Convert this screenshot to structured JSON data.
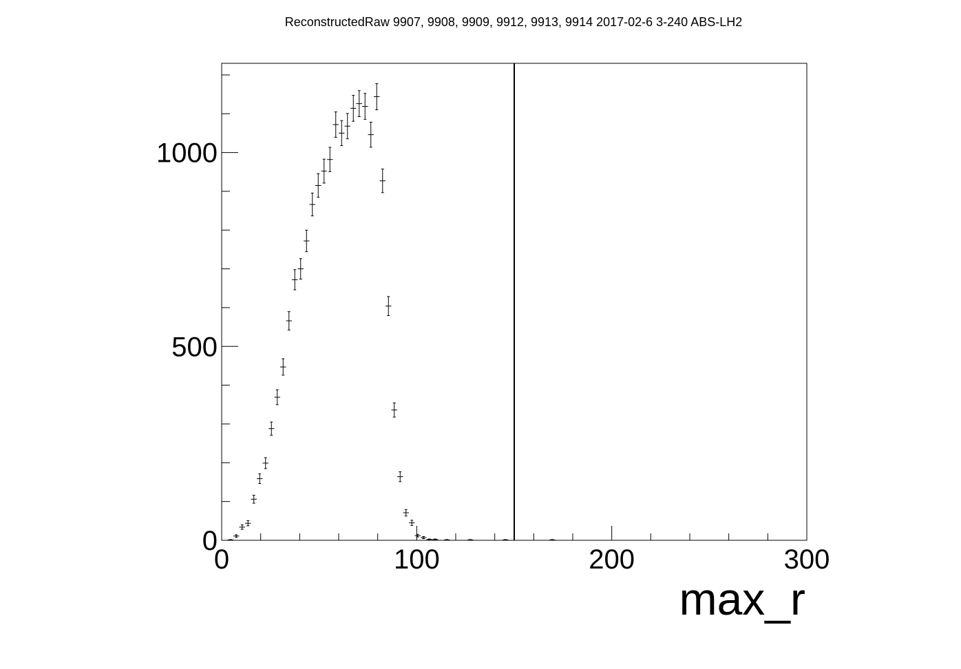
{
  "chart_data": {
    "type": "scatter",
    "title": "ReconstructedRaw 9907, 9908, 9909, 9912, 9913, 9914 2017-02-6 3-240 ABS-LH2",
    "xlabel": "max_r",
    "ylabel": "",
    "xlim": [
      0,
      300
    ],
    "ylim": [
      0,
      1230
    ],
    "x_ticks": [
      0,
      100,
      200,
      300
    ],
    "y_ticks": [
      0,
      500,
      1000
    ],
    "grid": false,
    "legend": "none",
    "cut_line_x": 150,
    "x_bin_width": 3,
    "points": [
      {
        "x": 4.5,
        "y": 1
      },
      {
        "x": 7.5,
        "y": 11
      },
      {
        "x": 10.5,
        "y": 34
      },
      {
        "x": 13.5,
        "y": 44
      },
      {
        "x": 16.5,
        "y": 106
      },
      {
        "x": 19.5,
        "y": 159
      },
      {
        "x": 22.5,
        "y": 199
      },
      {
        "x": 25.5,
        "y": 288
      },
      {
        "x": 28.5,
        "y": 369
      },
      {
        "x": 31.5,
        "y": 447
      },
      {
        "x": 34.5,
        "y": 566
      },
      {
        "x": 37.5,
        "y": 672
      },
      {
        "x": 40.5,
        "y": 700
      },
      {
        "x": 43.5,
        "y": 772
      },
      {
        "x": 46.5,
        "y": 866
      },
      {
        "x": 49.5,
        "y": 915
      },
      {
        "x": 52.5,
        "y": 952
      },
      {
        "x": 55.5,
        "y": 982
      },
      {
        "x": 58.5,
        "y": 1072
      },
      {
        "x": 61.5,
        "y": 1050
      },
      {
        "x": 64.5,
        "y": 1068
      },
      {
        "x": 67.5,
        "y": 1114
      },
      {
        "x": 70.5,
        "y": 1126
      },
      {
        "x": 73.5,
        "y": 1119
      },
      {
        "x": 76.5,
        "y": 1046
      },
      {
        "x": 79.5,
        "y": 1144
      },
      {
        "x": 82.5,
        "y": 927
      },
      {
        "x": 85.5,
        "y": 604
      },
      {
        "x": 88.5,
        "y": 336
      },
      {
        "x": 91.5,
        "y": 164
      },
      {
        "x": 94.5,
        "y": 71
      },
      {
        "x": 97.5,
        "y": 45
      },
      {
        "x": 100.5,
        "y": 12
      },
      {
        "x": 103.5,
        "y": 7
      },
      {
        "x": 106.5,
        "y": 2
      },
      {
        "x": 109.5,
        "y": 2
      },
      {
        "x": 115.5,
        "y": 1
      },
      {
        "x": 127.5,
        "y": 1
      },
      {
        "x": 145.5,
        "y": 1
      },
      {
        "x": 169.5,
        "y": 1
      }
    ]
  }
}
